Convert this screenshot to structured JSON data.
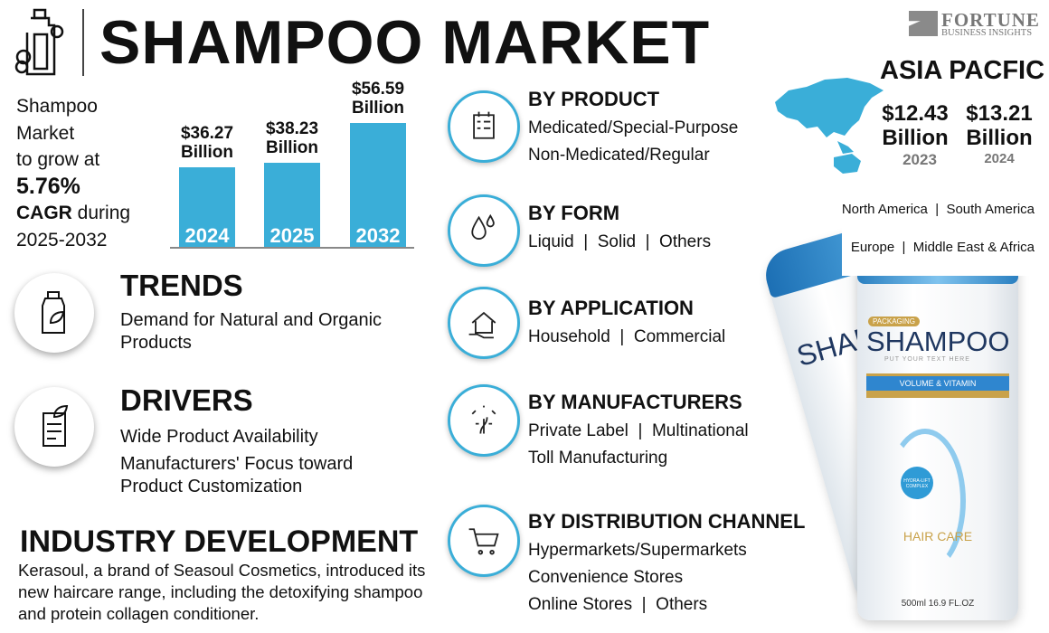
{
  "header": {
    "title": "SHAMPOO MARKET"
  },
  "logo": {
    "line1": "FORTUNE",
    "line2": "BUSINESS INSIGHTS"
  },
  "intro": {
    "line1": "Shampoo",
    "line2": "Market",
    "line3": "to grow at",
    "cagr": "5.76%",
    "cagr_label": "CAGR",
    "during": " during",
    "period": "2025-2032"
  },
  "chart_data": {
    "type": "bar",
    "categories": [
      "2024",
      "2025",
      "2032"
    ],
    "values": [
      36.27,
      38.23,
      56.59
    ],
    "value_labels": [
      "$36.27",
      "$38.23",
      "$56.59"
    ],
    "unit_label": "Billion",
    "bar_color": "#3aaed8"
  },
  "trends": {
    "title": "TRENDS",
    "text": "Demand for Natural and Organic Products"
  },
  "drivers": {
    "title": "DRIVERS",
    "items": [
      "Wide Product Availability",
      "Manufacturers' Focus toward Product Customization"
    ]
  },
  "industry": {
    "title": "INDUSTRY DEVELOPMENT",
    "text": "Kerasoul, a brand of Seasoul Cosmetics, introduced its new haircare range, including the detoxifying shampoo and protein collagen conditioner."
  },
  "segments": [
    {
      "title": "BY PRODUCT",
      "icon": "checklist-icon",
      "lines": [
        "Medicated/Special-Purpose",
        "Non-Medicated/Regular"
      ]
    },
    {
      "title": "BY FORM",
      "icon": "droplets-icon",
      "lines": [
        "Liquid  |  Solid  |  Others"
      ]
    },
    {
      "title": "BY APPLICATION",
      "icon": "home-hand-icon",
      "lines": [
        "Household  |  Commercial"
      ]
    },
    {
      "title": "BY MANUFACTURERS",
      "icon": "hair-follicle-icon",
      "lines": [
        "Private Label  |  Multinational",
        "Toll Manufacturing"
      ]
    },
    {
      "title": "BY DISTRIBUTION CHANNEL",
      "icon": "cart-icon",
      "lines": [
        "Hypermarkets/Supermarkets",
        "Convenience Stores",
        "Online Stores  |  Others"
      ]
    }
  ],
  "region": {
    "title": "ASIA PACFIC",
    "values": [
      {
        "amount": "$12.43",
        "unit": "Billion",
        "year": "2023"
      },
      {
        "amount": "$13.21",
        "unit": "Billion",
        "year": "2024"
      }
    ],
    "others_line1": "North America  |  South America",
    "others_line2": "Europe  |  Middle East & Africa",
    "map_color": "#3aaed8"
  },
  "bottle": {
    "brand": "SHAMPOO",
    "tag": "PACKAGING",
    "sub": "PUT YOUR TEXT HERE",
    "band": "VOLUME & VITAMIN",
    "care": "HAIR CARE",
    "badge": "HYDRA-LIFT COMPLEX",
    "volume": "500ml 16.9 FL.OZ"
  }
}
